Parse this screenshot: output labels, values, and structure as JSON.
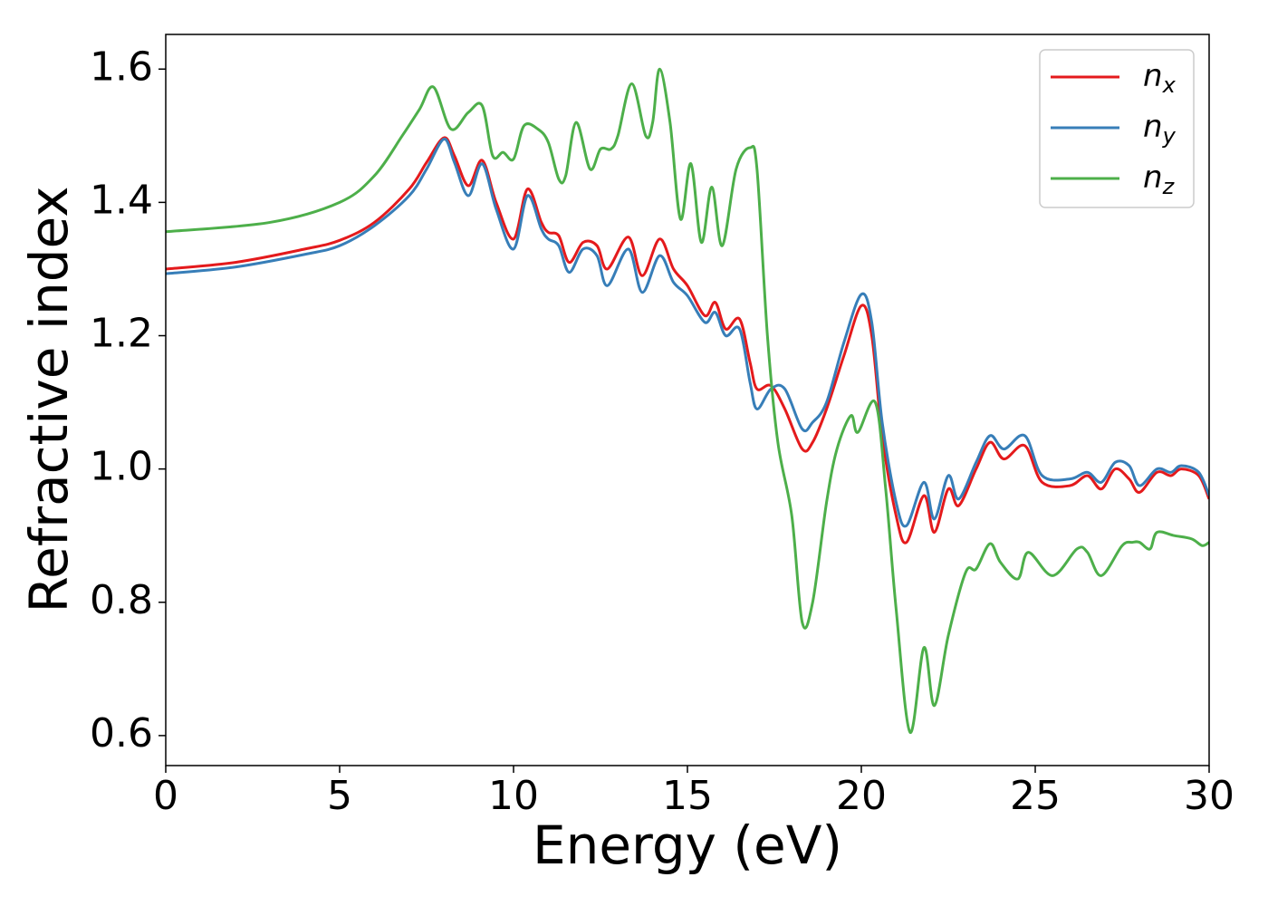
{
  "chart_data": {
    "type": "line",
    "xlabel": "Energy (eV)",
    "ylabel": "Refractive index",
    "xlim": [
      0,
      30
    ],
    "xticks": [
      0,
      5,
      10,
      15,
      20,
      25,
      30
    ],
    "ylim": [
      0.555,
      1.652
    ],
    "yticks": [
      0.6,
      0.8,
      {
        "value": 1,
        "label": "1.0"
      },
      1.2,
      1.4,
      1.6
    ],
    "legend": "upper right",
    "series": [
      {
        "name": "nx",
        "color": "#e41a1c",
        "x": [
          0,
          2,
          4,
          5,
          6,
          7,
          7.5,
          8,
          8.3,
          8.7,
          9.1,
          9.5,
          10,
          10.4,
          10.8,
          11,
          11.3,
          11.6,
          12,
          12.4,
          12.7,
          13.3,
          13.7,
          14.2,
          14.6,
          15,
          15.5,
          15.8,
          16.1,
          16.5,
          16.8,
          17,
          17.4,
          17.8,
          18.3,
          18.6,
          19,
          19.5,
          20,
          20.3,
          20.6,
          21,
          21.3,
          21.8,
          22.1,
          22.5,
          22.8,
          23.3,
          23.7,
          24.1,
          24.7,
          25.2,
          26,
          26.5,
          26.9,
          27.3,
          27.7,
          28,
          28.5,
          28.9,
          29.2,
          29.7,
          30
        ],
        "values": [
          1.3,
          1.31,
          1.33,
          1.343,
          1.37,
          1.42,
          1.46,
          1.497,
          1.47,
          1.425,
          1.463,
          1.4,
          1.345,
          1.42,
          1.37,
          1.355,
          1.35,
          1.31,
          1.34,
          1.335,
          1.3,
          1.348,
          1.29,
          1.345,
          1.3,
          1.275,
          1.23,
          1.25,
          1.21,
          1.225,
          1.16,
          1.12,
          1.125,
          1.09,
          1.03,
          1.04,
          1.09,
          1.17,
          1.245,
          1.2,
          1.05,
          0.93,
          0.89,
          0.96,
          0.905,
          0.97,
          0.945,
          1.0,
          1.04,
          1.015,
          1.035,
          0.98,
          0.975,
          0.99,
          0.97,
          1.0,
          0.985,
          0.965,
          0.995,
          0.99,
          1.0,
          0.99,
          0.955
        ]
      },
      {
        "name": "ny",
        "color": "#377eb8",
        "x": [
          0,
          2,
          4,
          5,
          6,
          7,
          7.5,
          8,
          8.3,
          8.7,
          9.1,
          9.5,
          10,
          10.4,
          10.8,
          11,
          11.3,
          11.6,
          12,
          12.4,
          12.7,
          13.3,
          13.7,
          14.2,
          14.6,
          15,
          15.5,
          15.8,
          16.1,
          16.5,
          16.8,
          17,
          17.4,
          17.8,
          18.3,
          18.6,
          19,
          19.5,
          20,
          20.3,
          20.6,
          21,
          21.3,
          21.8,
          22.1,
          22.5,
          22.8,
          23.3,
          23.7,
          24.1,
          24.7,
          25.2,
          26,
          26.5,
          26.9,
          27.3,
          27.7,
          28,
          28.5,
          28.9,
          29.2,
          29.7,
          30
        ],
        "values": [
          1.293,
          1.303,
          1.322,
          1.335,
          1.365,
          1.41,
          1.45,
          1.495,
          1.46,
          1.41,
          1.458,
          1.39,
          1.33,
          1.41,
          1.36,
          1.345,
          1.335,
          1.295,
          1.33,
          1.32,
          1.275,
          1.33,
          1.265,
          1.32,
          1.28,
          1.26,
          1.22,
          1.235,
          1.2,
          1.21,
          1.13,
          1.09,
          1.12,
          1.12,
          1.06,
          1.07,
          1.1,
          1.19,
          1.262,
          1.22,
          1.07,
          0.95,
          0.915,
          0.98,
          0.925,
          0.99,
          0.955,
          1.01,
          1.05,
          1.03,
          1.05,
          0.99,
          0.985,
          0.995,
          0.98,
          1.01,
          1.005,
          0.975,
          1.0,
          0.995,
          1.005,
          0.995,
          0.96
        ]
      },
      {
        "name": "nz",
        "color": "#4daf4a",
        "x": [
          0,
          3,
          5,
          6,
          6.8,
          7.3,
          7.7,
          8.2,
          8.7,
          9.1,
          9.4,
          9.7,
          10,
          10.3,
          10.7,
          11,
          11.3,
          11.5,
          11.8,
          12.2,
          12.5,
          12.8,
          13,
          13.4,
          13.8,
          14,
          14.2,
          14.5,
          14.8,
          15.1,
          15.4,
          15.7,
          16,
          16.4,
          16.8,
          17,
          17.3,
          17.6,
          18,
          18.3,
          18.6,
          19,
          19.3,
          19.7,
          19.9,
          20.4,
          20.7,
          21,
          21.4,
          21.8,
          22.1,
          22.5,
          23,
          23.3,
          23.7,
          24,
          24.5,
          24.8,
          25.5,
          26.2,
          26.5,
          26.9,
          27.5,
          27.8,
          28,
          28.3,
          28.5,
          29,
          29.5,
          29.8,
          30
        ],
        "values": [
          1.356,
          1.37,
          1.4,
          1.44,
          1.5,
          1.54,
          1.573,
          1.51,
          1.535,
          1.545,
          1.47,
          1.475,
          1.465,
          1.515,
          1.51,
          1.49,
          1.435,
          1.44,
          1.52,
          1.45,
          1.48,
          1.48,
          1.5,
          1.578,
          1.5,
          1.52,
          1.6,
          1.52,
          1.375,
          1.458,
          1.34,
          1.423,
          1.335,
          1.45,
          1.482,
          1.45,
          1.2,
          1.04,
          0.93,
          0.77,
          0.8,
          0.95,
          1.03,
          1.08,
          1.055,
          1.1,
          0.97,
          0.79,
          0.605,
          0.732,
          0.645,
          0.75,
          0.845,
          0.85,
          0.888,
          0.86,
          0.835,
          0.875,
          0.84,
          0.88,
          0.875,
          0.84,
          0.885,
          0.89,
          0.89,
          0.88,
          0.905,
          0.9,
          0.895,
          0.885,
          0.89
        ]
      }
    ]
  }
}
